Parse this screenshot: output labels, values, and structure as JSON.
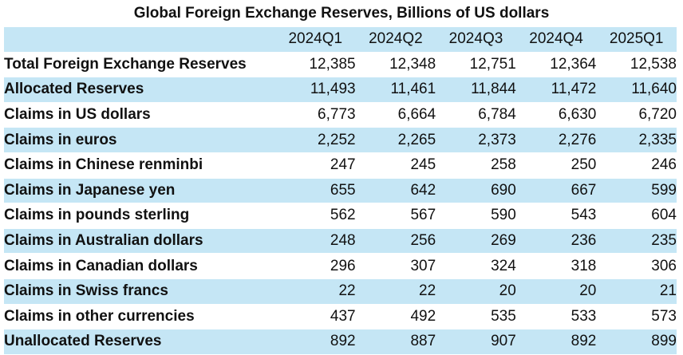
{
  "title": "Global Foreign Exchange Reserves, Billions of US dollars",
  "colors": {
    "shaded_row": "#c5e6f5",
    "plain_row": "#ffffff",
    "text": "#111111"
  },
  "columns": [
    "2024Q1",
    "2024Q2",
    "2024Q3",
    "2024Q4",
    "2025Q1"
  ],
  "rows": [
    {
      "label": "Total Foreign Exchange Reserves",
      "values": [
        "12,385",
        "12,348",
        "12,751",
        "12,364",
        "12,538"
      ]
    },
    {
      "label": "Allocated Reserves",
      "values": [
        "11,493",
        "11,461",
        "11,844",
        "11,472",
        "11,640"
      ]
    },
    {
      "label": "Claims in US dollars",
      "values": [
        "6,773",
        "6,664",
        "6,784",
        "6,630",
        "6,720"
      ]
    },
    {
      "label": "Claims in euros",
      "values": [
        "2,252",
        "2,265",
        "2,373",
        "2,276",
        "2,335"
      ]
    },
    {
      "label": "Claims in Chinese renminbi",
      "values": [
        "247",
        "245",
        "258",
        "250",
        "246"
      ]
    },
    {
      "label": "Claims in Japanese yen",
      "values": [
        "655",
        "642",
        "690",
        "667",
        "599"
      ]
    },
    {
      "label": "Claims in pounds sterling",
      "values": [
        "562",
        "567",
        "590",
        "543",
        "604"
      ]
    },
    {
      "label": "Claims in Australian dollars",
      "values": [
        "248",
        "256",
        "269",
        "236",
        "235"
      ]
    },
    {
      "label": "Claims in Canadian dollars",
      "values": [
        "296",
        "307",
        "324",
        "318",
        "306"
      ]
    },
    {
      "label": "Claims in Swiss francs",
      "values": [
        "22",
        "22",
        "20",
        "20",
        "21"
      ]
    },
    {
      "label": "Claims in other currencies",
      "values": [
        "437",
        "492",
        "535",
        "533",
        "573"
      ]
    },
    {
      "label": "Unallocated Reserves",
      "values": [
        "892",
        "887",
        "907",
        "892",
        "899"
      ]
    }
  ]
}
